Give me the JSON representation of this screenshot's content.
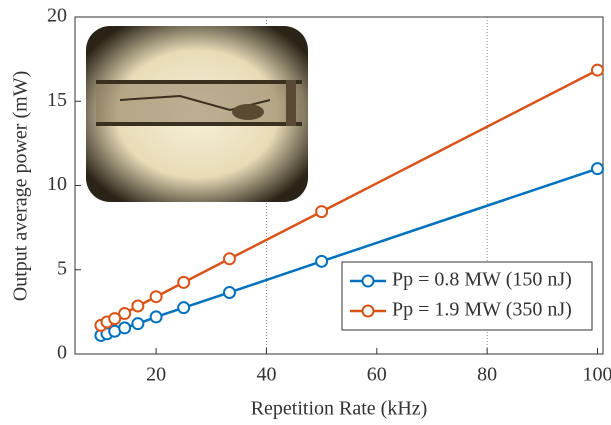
{
  "chart_data": {
    "type": "line",
    "x_label": "Repetition Rate (kHz)",
    "y_label": "Output average power (mW)",
    "x": [
      10,
      11.1,
      12.5,
      14.3,
      16.7,
      20,
      25,
      33.3,
      50,
      100
    ],
    "series": [
      {
        "name": "Pp = 0.8 MW (150 nJ)",
        "color": "#0072bd",
        "values": [
          1.1,
          1.2,
          1.35,
          1.55,
          1.8,
          2.2,
          2.75,
          3.65,
          5.5,
          11.0
        ]
      },
      {
        "name": "Pp = 1.9 MW (350 nJ)",
        "color": "#d95319",
        "values": [
          1.7,
          1.9,
          2.1,
          2.4,
          2.85,
          3.4,
          4.25,
          5.65,
          8.45,
          16.85
        ]
      }
    ],
    "xlim": [
      5.3,
      101
    ],
    "xticks": [
      20,
      40,
      60,
      80,
      100
    ],
    "ylim": [
      0,
      20
    ],
    "yticks": [
      0,
      5,
      10,
      15,
      20
    ],
    "xgrid": [
      40,
      80
    ],
    "legend": "lower right"
  }
}
